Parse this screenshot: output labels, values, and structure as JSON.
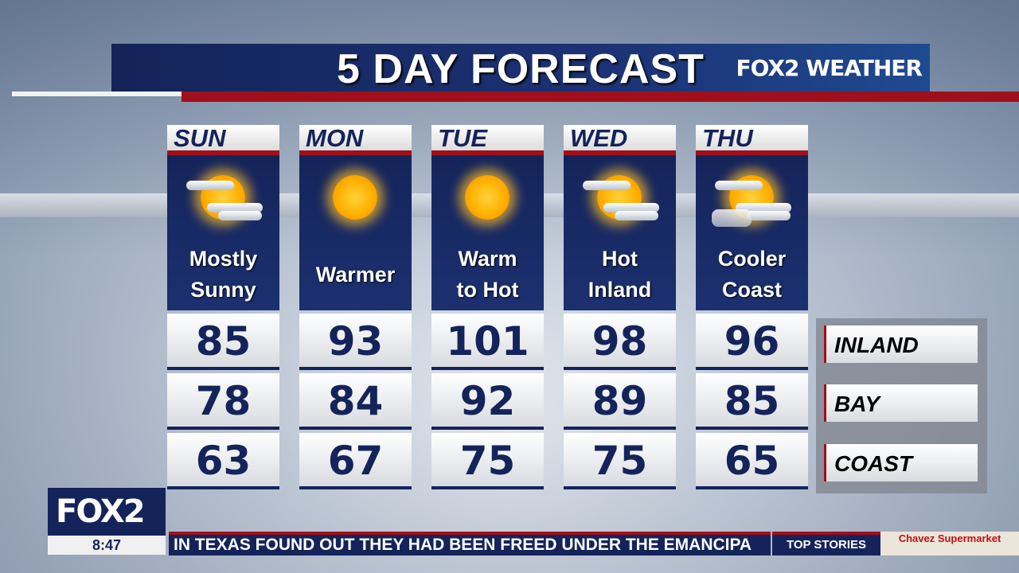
{
  "header": {
    "title": "5 DAY FORECAST",
    "brand": "FOX2 WEATHER"
  },
  "days": [
    {
      "name": "SUN",
      "icon": "mostly-sunny-icon",
      "desc": "Mostly\nSunny",
      "temps": [
        "85",
        "78",
        "63"
      ]
    },
    {
      "name": "MON",
      "icon": "sun-icon",
      "desc": "Warmer",
      "temps": [
        "93",
        "84",
        "67"
      ]
    },
    {
      "name": "TUE",
      "icon": "sun-icon",
      "desc": "Warm\nto Hot",
      "temps": [
        "101",
        "92",
        "75"
      ]
    },
    {
      "name": "WED",
      "icon": "mostly-sunny-icon",
      "desc": "Hot\nInland",
      "temps": [
        "98",
        "89",
        "75"
      ]
    },
    {
      "name": "THU",
      "icon": "partly-cloudy-icon",
      "desc": "Cooler\nCoast",
      "temps": [
        "96",
        "85",
        "65"
      ]
    }
  ],
  "legend": [
    "INLAND",
    "BAY",
    "COAST"
  ],
  "footer": {
    "logo": "FOX2",
    "time": "8:47",
    "ticker": "IN TEXAS FOUND OUT THEY HAD BEEN FREED UNDER THE EMANCIPA",
    "top_stories": "TOP STORIES",
    "sponsor": "Chavez Supermarket"
  },
  "colors": {
    "navy": "#14245a",
    "red": "#a0101a"
  }
}
